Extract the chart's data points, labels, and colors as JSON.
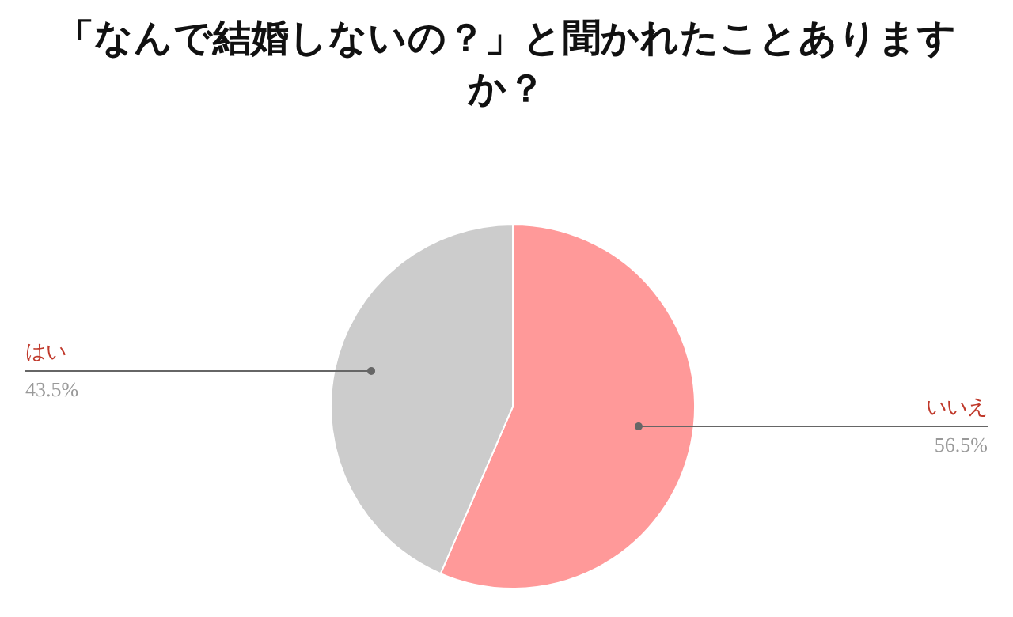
{
  "chart_data": {
    "type": "pie",
    "title": "「なんで結婚しないの？」と聞かれたことありますか？",
    "categories": [
      "いいえ",
      "はい"
    ],
    "values": [
      56.5,
      43.5
    ],
    "colors": [
      "#ff9999",
      "#cccccc"
    ],
    "value_labels": [
      "56.5%",
      "43.5%"
    ]
  }
}
